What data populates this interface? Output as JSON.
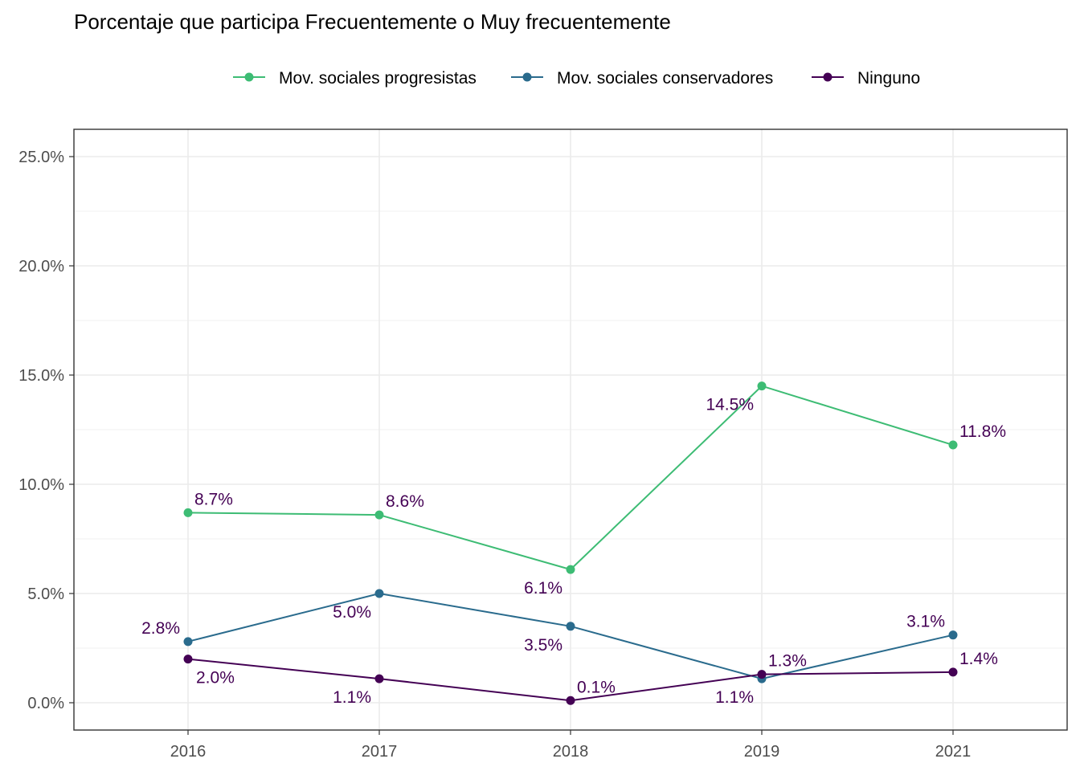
{
  "chart_data": {
    "type": "line",
    "title": "Porcentaje que participa Frecuentemente o Muy frecuentemente",
    "xlabel": "",
    "ylabel": "",
    "categories": [
      "2016",
      "2017",
      "2018",
      "2019",
      "2021"
    ],
    "ylim": [
      0,
      0.26
    ],
    "yticks": [
      {
        "value": 0.0,
        "label": "0.0%"
      },
      {
        "value": 0.05,
        "label": "5.0%"
      },
      {
        "value": 0.1,
        "label": "10.0%"
      },
      {
        "value": 0.15,
        "label": "15.0%"
      },
      {
        "value": 0.2,
        "label": "20.0%"
      },
      {
        "value": 0.25,
        "label": "25.0%"
      }
    ],
    "grid": true,
    "legend_position": "top",
    "label_color": "#440154",
    "series": [
      {
        "name": "Mov. sociales progresistas",
        "color": "#3dbc74",
        "values": [
          0.087,
          0.086,
          0.061,
          0.145,
          0.118
        ],
        "labels": [
          "8.7%",
          "8.6%",
          "6.1%",
          "14.5%",
          "11.8%"
        ],
        "label_side": [
          "above",
          "above",
          "below",
          "below",
          "above"
        ]
      },
      {
        "name": "Mov. sociales conservadores",
        "color": "#2a6b8d",
        "values": [
          0.028,
          0.05,
          0.035,
          0.011,
          0.031
        ],
        "labels": [
          "2.8%",
          "5.0%",
          "3.5%",
          "1.1%",
          "3.1%"
        ],
        "label_side": [
          "above-left",
          "below",
          "below",
          "below",
          "above-left"
        ]
      },
      {
        "name": "Ninguno",
        "color": "#440154",
        "values": [
          0.02,
          0.011,
          0.001,
          0.013,
          0.014
        ],
        "labels": [
          "2.0%",
          "1.1%",
          "0.1%",
          "1.3%",
          "1.4%"
        ],
        "label_side": [
          "below",
          "below",
          "above",
          "above",
          "above"
        ]
      }
    ]
  }
}
